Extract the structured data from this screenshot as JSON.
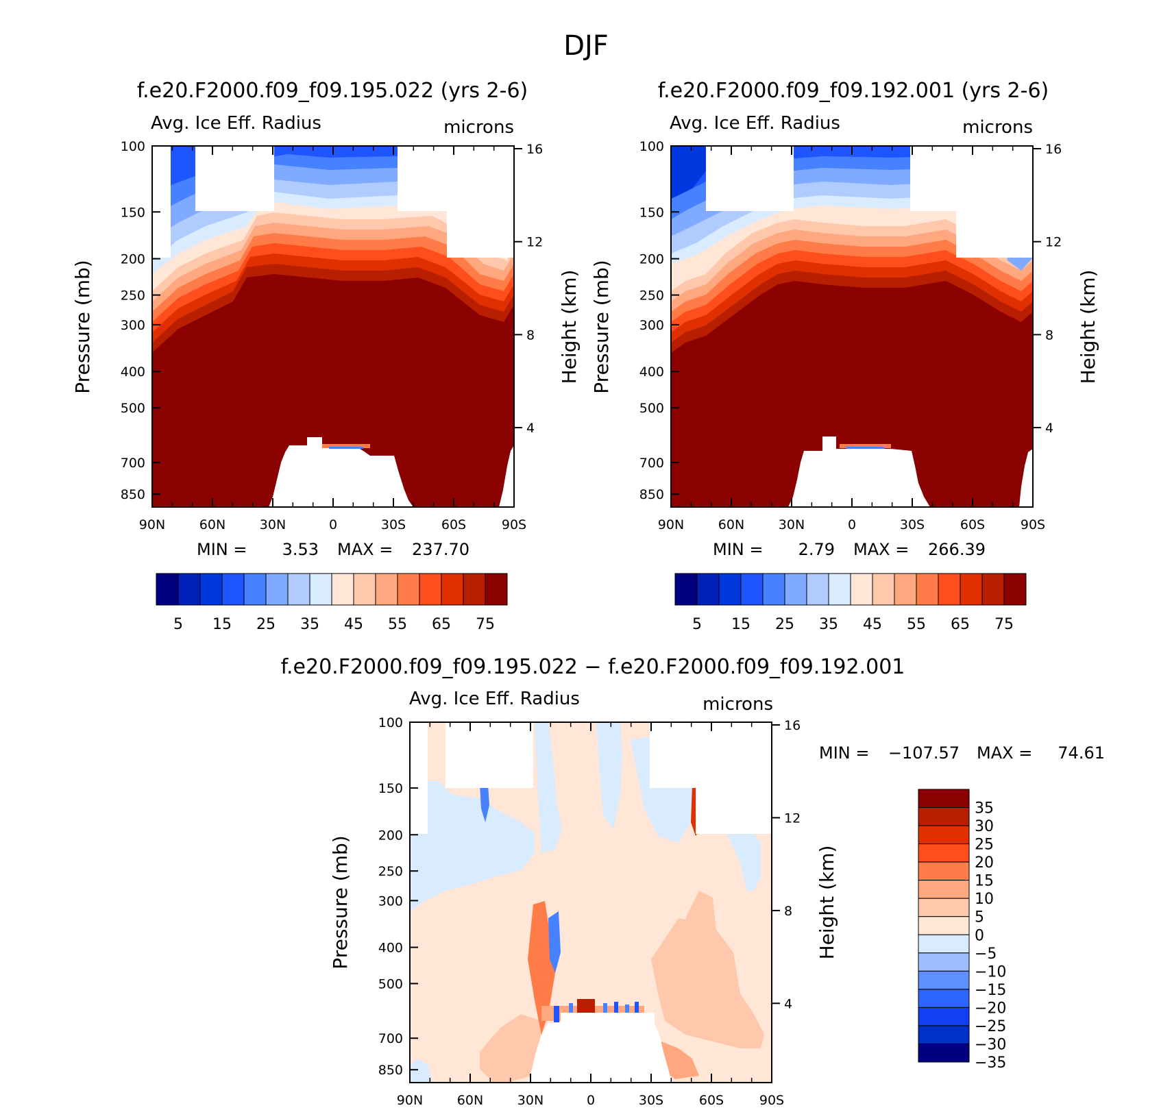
{
  "page_title": "DJF",
  "colors": {
    "main_scale": [
      "#000080",
      "#0020b8",
      "#0038e0",
      "#1f55ff",
      "#4682ff",
      "#80aaff",
      "#b0ccff",
      "#d8ebff",
      "#ffe6d6",
      "#ffc8ac",
      "#ffa880",
      "#ff7c48",
      "#ff4d1c",
      "#e03000",
      "#b81e00",
      "#8b0000"
    ],
    "diff_scale": [
      "#000080",
      "#0030c8",
      "#1040f0",
      "#2c66ff",
      "#6090ff",
      "#9ebcff",
      "#d8ebff",
      "#ffe6d6",
      "#ffc8ac",
      "#ffa880",
      "#ff7c48",
      "#ff4d1c",
      "#e03000",
      "#b81e00",
      "#8b0000"
    ]
  },
  "chart_data": [
    {
      "type": "heatmap",
      "title": "f.e20.F2000.f09_f09.195.022 (yrs 2-6)",
      "subtitle_left": "Avg. Ice Eff. Radius",
      "subtitle_right": "microns",
      "ylabel": "Pressure (mb)",
      "ylabel_right": "Height (km)",
      "x_ticks": [
        "90N",
        "60N",
        "30N",
        "0",
        "30S",
        "60S",
        "90S"
      ],
      "y_ticks": [
        100,
        150,
        200,
        250,
        300,
        400,
        500,
        700,
        850
      ],
      "y_right_ticks": [
        16,
        12,
        8,
        4
      ],
      "stats": {
        "min_label": "MIN =",
        "min": "3.53",
        "max_label": "MAX =",
        "max": "237.70"
      },
      "colorbar_labels": [
        "5",
        "15",
        "25",
        "35",
        "45",
        "55",
        "65",
        "75"
      ]
    },
    {
      "type": "heatmap",
      "title": "f.e20.F2000.f09_f09.192.001 (yrs 2-6)",
      "subtitle_left": "Avg. Ice Eff. Radius",
      "subtitle_right": "microns",
      "ylabel": "Pressure (mb)",
      "ylabel_right": "Height (km)",
      "x_ticks": [
        "90N",
        "60N",
        "30N",
        "0",
        "30S",
        "60S",
        "90S"
      ],
      "y_ticks": [
        100,
        150,
        200,
        250,
        300,
        400,
        500,
        700,
        850
      ],
      "y_right_ticks": [
        16,
        12,
        8,
        4
      ],
      "stats": {
        "min_label": "MIN =",
        "min": "2.79",
        "max_label": "MAX =",
        "max": "266.39"
      },
      "colorbar_labels": [
        "5",
        "15",
        "25",
        "35",
        "45",
        "55",
        "65",
        "75"
      ]
    },
    {
      "type": "heatmap",
      "title": "f.e20.F2000.f09_f09.195.022 − f.e20.F2000.f09_f09.192.001",
      "subtitle_left": "Avg. Ice Eff. Radius",
      "subtitle_right": "microns",
      "ylabel": "Pressure (mb)",
      "ylabel_right": "Height (km)",
      "x_ticks": [
        "90N",
        "60N",
        "30N",
        "0",
        "30S",
        "60S",
        "90S"
      ],
      "y_ticks": [
        100,
        150,
        200,
        250,
        300,
        400,
        500,
        700,
        850
      ],
      "y_right_ticks": [
        16,
        12,
        8,
        4
      ],
      "stats": {
        "min_label": "MIN =",
        "min": "−107.57",
        "max_label": "MAX =",
        "max": "74.61"
      },
      "colorbar_labels": [
        "35",
        "30",
        "25",
        "20",
        "15",
        "10",
        "5",
        "0",
        "−5",
        "−10",
        "−15",
        "−20",
        "−25",
        "−30",
        "−35"
      ]
    }
  ]
}
